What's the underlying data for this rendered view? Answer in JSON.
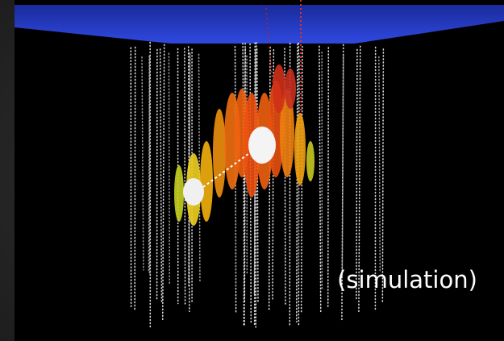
{
  "caption": "(simulation)"
}
